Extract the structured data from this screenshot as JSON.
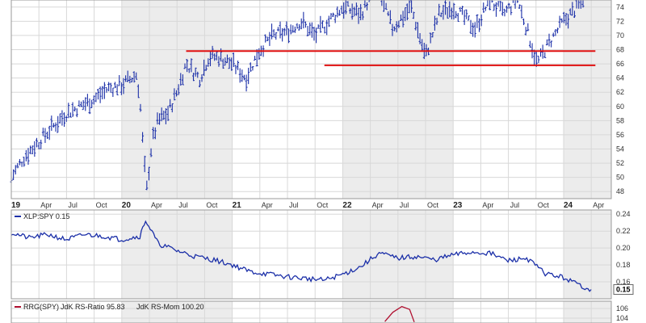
{
  "chart_data": [
    {
      "type": "ohlc",
      "title": "",
      "ylim": [
        47,
        75
      ],
      "y_ticks": [
        "48",
        "50",
        "52",
        "54",
        "56",
        "58",
        "60",
        "62",
        "64",
        "66",
        "68",
        "70",
        "72",
        "74"
      ],
      "x_ticks": [
        {
          "label": "19",
          "bold": true
        },
        {
          "label": "Apr"
        },
        {
          "label": "Jul"
        },
        {
          "label": "Oct"
        },
        {
          "label": "20",
          "bold": true
        },
        {
          "label": "Apr"
        },
        {
          "label": "Jul"
        },
        {
          "label": "Oct"
        },
        {
          "label": "21",
          "bold": true
        },
        {
          "label": "Apr"
        },
        {
          "label": "Jul"
        },
        {
          "label": "Oct"
        },
        {
          "label": "22",
          "bold": true
        },
        {
          "label": "Apr"
        },
        {
          "label": "Jul"
        },
        {
          "label": "Oct"
        },
        {
          "label": "23",
          "bold": true
        },
        {
          "label": "Apr"
        },
        {
          "label": "Jul"
        },
        {
          "label": "Oct"
        },
        {
          "label": "24",
          "bold": true
        },
        {
          "label": "Apr"
        }
      ],
      "price_path": [
        [
          "2019-01-01",
          50
        ],
        [
          "2019-02-15",
          53
        ],
        [
          "2019-04-01",
          55
        ],
        [
          "2019-05-15",
          57
        ],
        [
          "2019-07-01",
          59
        ],
        [
          "2019-08-15",
          60
        ],
        [
          "2019-10-01",
          61
        ],
        [
          "2019-11-15",
          62.5
        ],
        [
          "2020-01-01",
          63
        ],
        [
          "2020-02-20",
          64.5
        ],
        [
          "2020-03-01",
          61
        ],
        [
          "2020-03-12",
          54
        ],
        [
          "2020-03-23",
          48
        ],
        [
          "2020-04-10",
          55
        ],
        [
          "2020-05-01",
          58
        ],
        [
          "2020-06-01",
          59
        ],
        [
          "2020-07-01",
          62
        ],
        [
          "2020-08-01",
          66
        ],
        [
          "2020-09-15",
          64
        ],
        [
          "2020-10-15",
          67
        ],
        [
          "2020-11-15",
          67
        ],
        [
          "2021-01-01",
          66
        ],
        [
          "2021-02-15",
          64
        ],
        [
          "2021-04-01",
          68
        ],
        [
          "2021-05-15",
          70
        ],
        [
          "2021-07-01",
          70.5
        ],
        [
          "2021-08-15",
          72
        ],
        [
          "2021-10-01",
          70
        ],
        [
          "2021-11-15",
          72
        ],
        [
          "2022-01-01",
          74
        ],
        [
          "2022-03-01",
          73
        ],
        [
          "2022-04-20",
          77
        ],
        [
          "2022-06-15",
          71
        ],
        [
          "2022-08-15",
          74
        ],
        [
          "2022-10-01",
          67
        ],
        [
          "2022-11-15",
          73
        ],
        [
          "2023-01-01",
          74
        ],
        [
          "2023-03-15",
          71
        ],
        [
          "2023-05-01",
          75
        ],
        [
          "2023-06-15",
          73
        ],
        [
          "2023-08-01",
          75
        ],
        [
          "2023-09-01",
          71
        ],
        [
          "2023-10-05",
          66
        ],
        [
          "2023-11-15",
          69
        ],
        [
          "2024-01-01",
          72
        ],
        [
          "2024-02-15",
          74
        ],
        [
          "2024-03-15",
          76
        ]
      ],
      "resistance_lines": [
        {
          "from": "2020-08-01",
          "to": "2024-04-15",
          "y": 67.8,
          "color": "#e01010"
        },
        {
          "from": "2021-11-01",
          "to": "2024-04-15",
          "y": 65.8,
          "color": "#e01010"
        }
      ],
      "bar_color": "#1b2fa8"
    },
    {
      "type": "line",
      "legend": "XLP:SPY 0.15",
      "last_value": "0.15",
      "ylim": [
        0.14,
        0.245
      ],
      "y_ticks": [
        "0.16",
        "0.18",
        "0.20",
        "0.22",
        "0.24"
      ],
      "series_color": "#1b2fa8",
      "x": [
        "2019-01-01",
        "2019-03-01",
        "2019-05-01",
        "2019-07-01",
        "2019-09-01",
        "2019-11-01",
        "2020-01-01",
        "2020-03-01",
        "2020-03-20",
        "2020-05-01",
        "2020-07-01",
        "2020-09-01",
        "2020-11-01",
        "2021-01-01",
        "2021-03-01",
        "2021-05-01",
        "2021-07-01",
        "2021-09-01",
        "2021-11-01",
        "2022-01-01",
        "2022-03-01",
        "2022-05-01",
        "2022-07-01",
        "2022-09-01",
        "2022-11-01",
        "2023-01-01",
        "2023-03-01",
        "2023-05-01",
        "2023-07-01",
        "2023-09-01",
        "2023-11-01",
        "2024-01-01",
        "2024-03-01",
        "2024-04-01"
      ],
      "values": [
        0.218,
        0.212,
        0.216,
        0.21,
        0.216,
        0.214,
        0.21,
        0.214,
        0.233,
        0.205,
        0.197,
        0.19,
        0.186,
        0.18,
        0.172,
        0.169,
        0.166,
        0.164,
        0.162,
        0.169,
        0.178,
        0.194,
        0.188,
        0.19,
        0.186,
        0.192,
        0.195,
        0.194,
        0.185,
        0.188,
        0.17,
        0.165,
        0.155,
        0.151
      ]
    },
    {
      "type": "line",
      "legend_prefix": "RRG(SPY)",
      "legend_items": [
        {
          "label": "JdK RS-Ratio 95.83",
          "color": "#b01030"
        },
        {
          "label": "JdK RS-Mom 100.20",
          "color": "#1e7a1e"
        }
      ],
      "ylim": [
        103,
        107.5
      ],
      "y_ticks": [
        "104",
        "106"
      ],
      "series": [
        {
          "name": "JdK RS-Ratio",
          "color": "#b01030",
          "x": [
            "2022-05-20",
            "2022-06-15",
            "2022-07-15",
            "2022-08-10",
            "2022-08-25"
          ],
          "values": [
            103.3,
            105.2,
            106.4,
            105.8,
            103.2
          ]
        }
      ]
    }
  ]
}
